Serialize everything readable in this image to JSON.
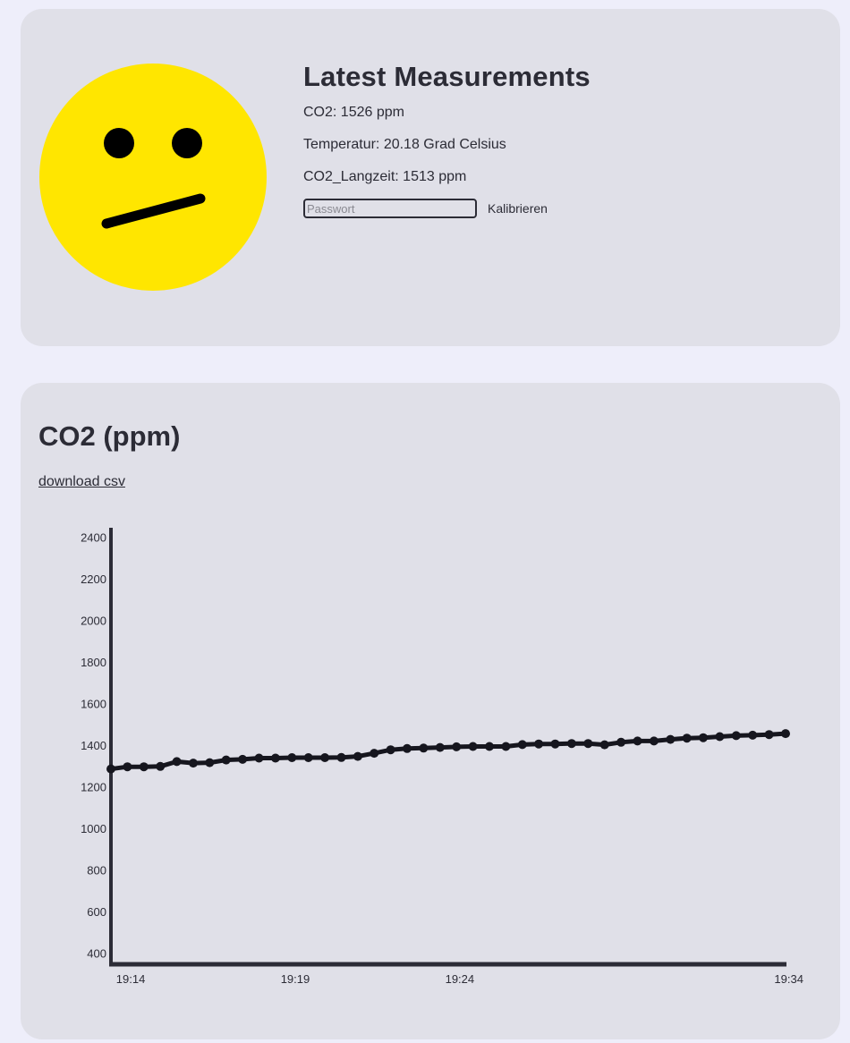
{
  "latest": {
    "title": "Latest Measurements",
    "co2": "CO2: 1526 ppm",
    "temperature": "Temperatur: 20.18 Grad Celsius",
    "co2_longterm": "CO2_Langzeit: 1513 ppm",
    "password_placeholder": "Passwort",
    "calibrate_label": "Kalibrieren"
  },
  "face": {
    "mood": "neutral",
    "face_color": "#ffe600",
    "feature_color": "#000000"
  },
  "chart_section": {
    "title": "CO2 (ppm)",
    "download_label": "download csv"
  },
  "chart_data": {
    "type": "line",
    "title": "CO2 (ppm)",
    "xlabel": "",
    "ylabel": "",
    "yticks": [
      400,
      600,
      800,
      1000,
      1200,
      1400,
      1600,
      1800,
      2000,
      2200,
      2400
    ],
    "ylim": [
      350,
      2450
    ],
    "xticks": [
      "19:14",
      "19:19",
      "19:24",
      "19:34"
    ],
    "xlim": [
      "19:13.4",
      "19:33.9"
    ],
    "x": [
      "19:13.4",
      "19:13.9",
      "19:14.4",
      "19:14.9",
      "19:15.4",
      "19:15.9",
      "19:16.4",
      "19:16.9",
      "19:17.4",
      "19:17.9",
      "19:18.4",
      "19:18.9",
      "19:19.4",
      "19:19.9",
      "19:20.4",
      "19:20.9",
      "19:21.4",
      "19:21.9",
      "19:22.4",
      "19:22.9",
      "19:23.4",
      "19:23.9",
      "19:24.4",
      "19:24.9",
      "19:25.4",
      "19:25.9",
      "19:26.4",
      "19:26.9",
      "19:27.4",
      "19:27.9",
      "19:28.4",
      "19:28.9",
      "19:29.4",
      "19:29.9",
      "19:30.4",
      "19:30.9",
      "19:31.4",
      "19:31.9",
      "19:32.4",
      "19:32.9",
      "19:33.4",
      "19:33.9"
    ],
    "values": [
      1290,
      1300,
      1300,
      1302,
      1325,
      1318,
      1320,
      1333,
      1336,
      1342,
      1342,
      1344,
      1344,
      1344,
      1345,
      1350,
      1365,
      1382,
      1388,
      1390,
      1393,
      1396,
      1398,
      1398,
      1398,
      1407,
      1410,
      1410,
      1412,
      1412,
      1406,
      1418,
      1424,
      1424,
      1432,
      1438,
      1440,
      1445,
      1450,
      1452,
      1455,
      1460
    ],
    "grid": false,
    "series_color": "#16161e"
  }
}
